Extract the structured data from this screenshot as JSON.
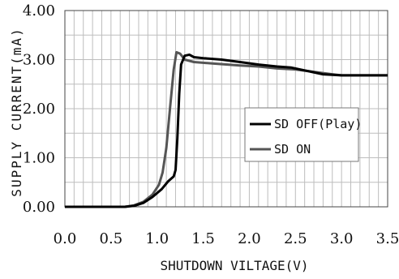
{
  "chart_data": {
    "type": "line",
    "xlabel": "SHUTDOWN VILTAGE(V)",
    "ylabel": "SUPPLY CURRENT(mA)",
    "xlim": [
      0,
      3.5
    ],
    "ylim": [
      0,
      4
    ],
    "x_ticks": [
      "0.0",
      "0.5",
      "1.0",
      "1.5",
      "2.0",
      "2.5",
      "3.0",
      "3.5"
    ],
    "y_ticks": [
      "0.00",
      "1.00",
      "2.00",
      "3.00",
      "4.00"
    ],
    "grid": true,
    "legend_position": "right-middle",
    "series": [
      {
        "name": "SD OFF(Play)",
        "color": "#000000",
        "points": [
          [
            0,
            0
          ],
          [
            0.65,
            0
          ],
          [
            0.75,
            0.02
          ],
          [
            0.85,
            0.08
          ],
          [
            0.95,
            0.2
          ],
          [
            1.05,
            0.36
          ],
          [
            1.12,
            0.52
          ],
          [
            1.18,
            0.62
          ],
          [
            1.2,
            0.75
          ],
          [
            1.22,
            1.4
          ],
          [
            1.24,
            2.3
          ],
          [
            1.26,
            2.9
          ],
          [
            1.3,
            3.08
          ],
          [
            1.35,
            3.1
          ],
          [
            1.4,
            3.05
          ],
          [
            1.5,
            3.03
          ],
          [
            1.7,
            3.0
          ],
          [
            1.9,
            2.95
          ],
          [
            2.1,
            2.9
          ],
          [
            2.3,
            2.86
          ],
          [
            2.45,
            2.84
          ],
          [
            2.6,
            2.78
          ],
          [
            2.8,
            2.7
          ],
          [
            3.0,
            2.68
          ],
          [
            3.5,
            2.68
          ]
        ]
      },
      {
        "name": "SD ON",
        "color": "#555555",
        "points": [
          [
            0,
            0
          ],
          [
            0.65,
            0
          ],
          [
            0.75,
            0.03
          ],
          [
            0.85,
            0.1
          ],
          [
            0.95,
            0.25
          ],
          [
            1.02,
            0.45
          ],
          [
            1.06,
            0.7
          ],
          [
            1.1,
            1.2
          ],
          [
            1.14,
            2.0
          ],
          [
            1.18,
            2.8
          ],
          [
            1.21,
            3.15
          ],
          [
            1.25,
            3.12
          ],
          [
            1.3,
            3.0
          ],
          [
            1.4,
            2.95
          ],
          [
            1.6,
            2.92
          ],
          [
            1.9,
            2.88
          ],
          [
            2.1,
            2.86
          ],
          [
            2.3,
            2.82
          ],
          [
            2.5,
            2.8
          ],
          [
            2.7,
            2.75
          ],
          [
            2.9,
            2.7
          ],
          [
            3.0,
            2.68
          ],
          [
            3.5,
            2.68
          ]
        ]
      }
    ]
  }
}
